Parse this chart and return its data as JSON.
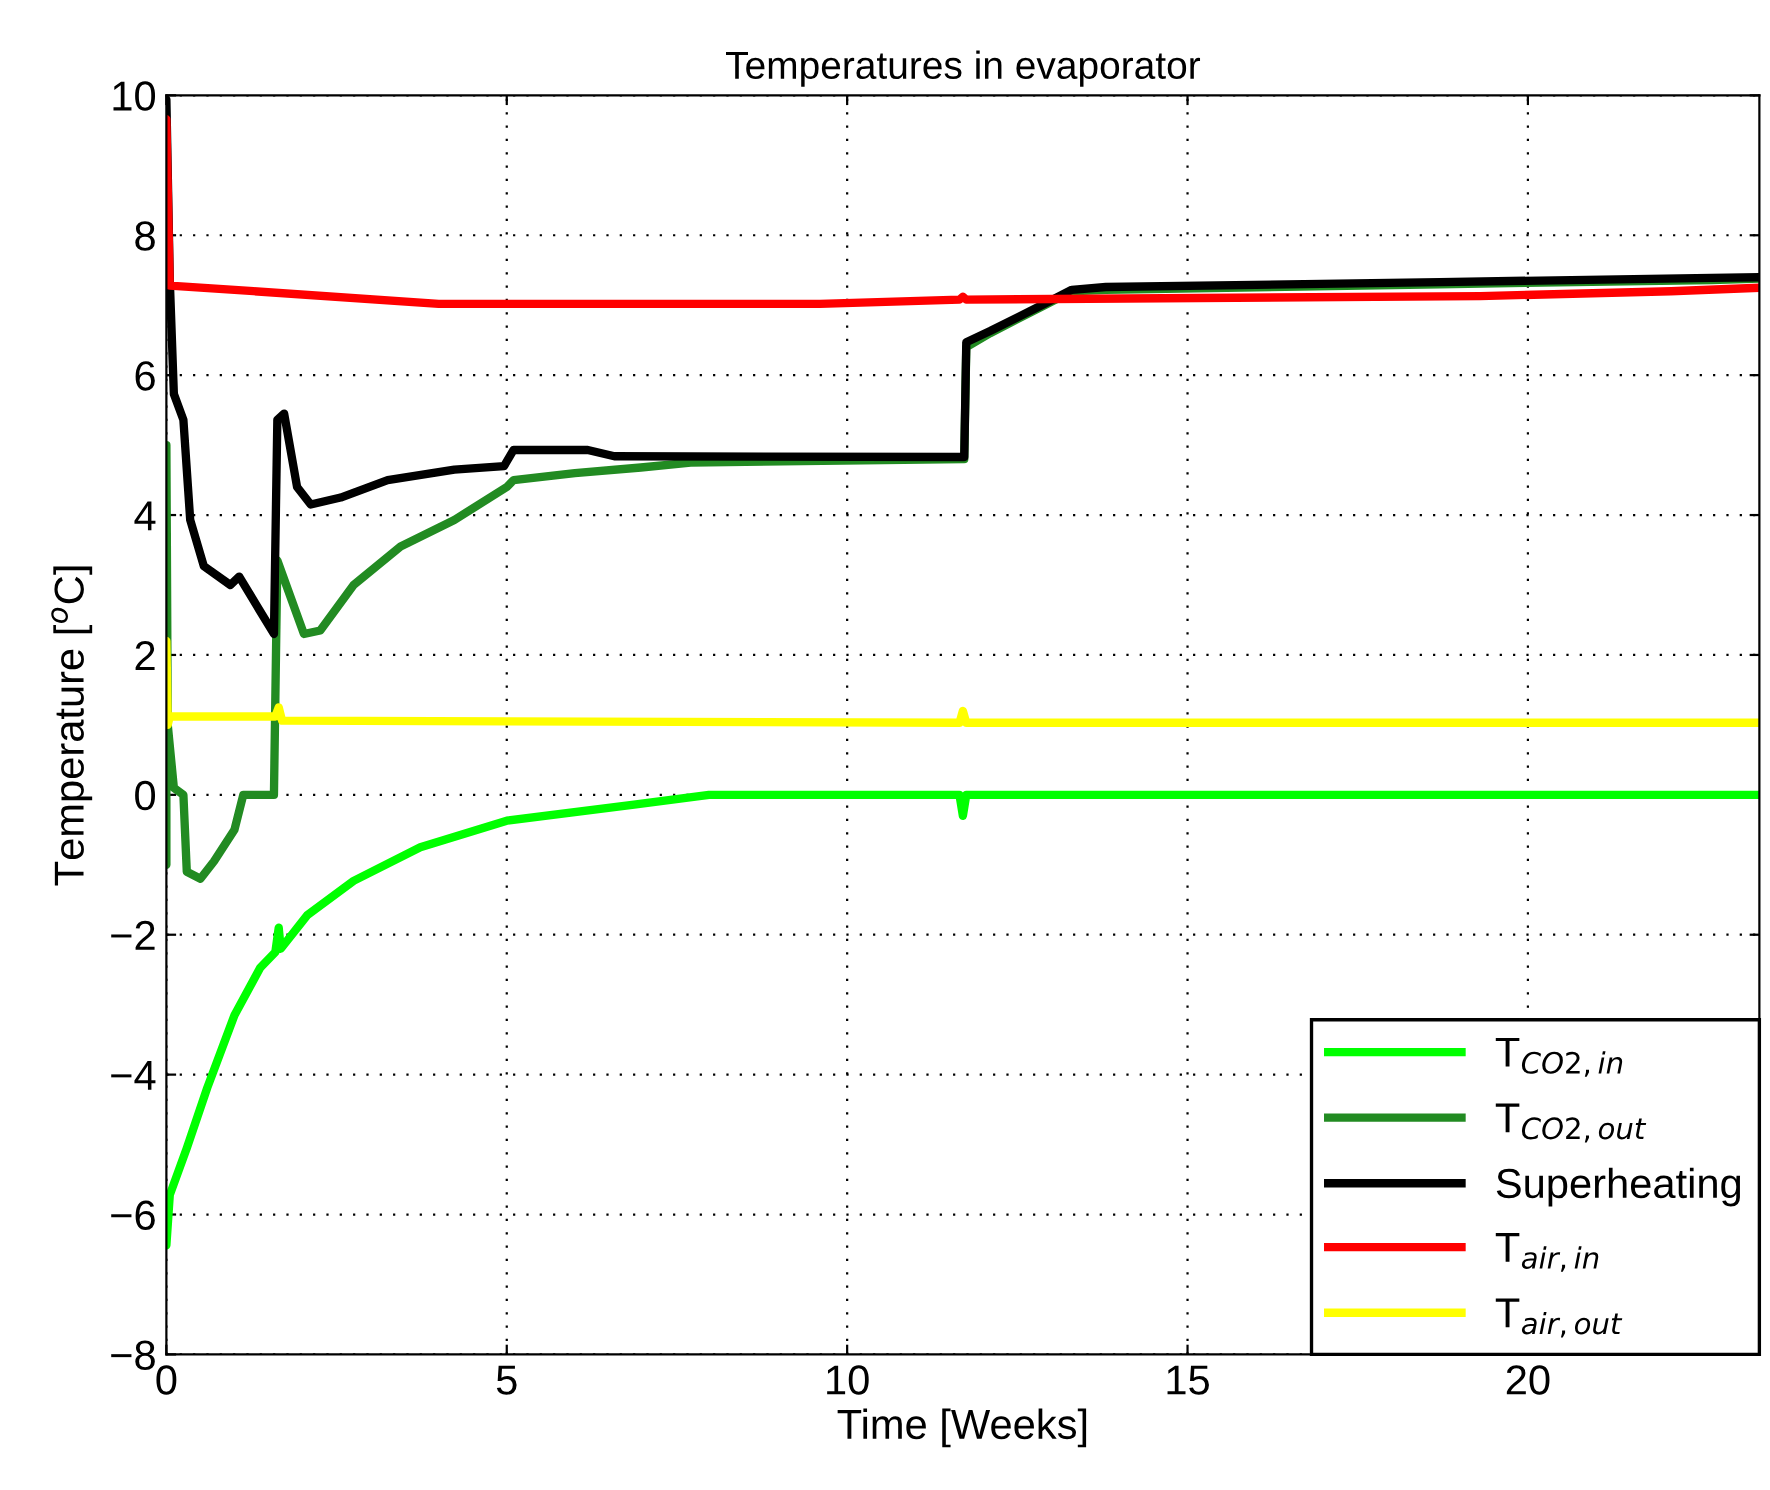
{
  "chart_data": {
    "type": "line",
    "title": "Temperatures in evaporator",
    "xlabel": "Time [Weeks]",
    "ylabel": "Temperature [$^{o}$C]",
    "xlim": [
      0,
      23.4
    ],
    "xticks": [
      0,
      5,
      10,
      15,
      20
    ],
    "ylim": [
      -8,
      10
    ],
    "yticks": [
      -8,
      -6,
      -4,
      -2,
      0,
      2,
      4,
      6,
      8,
      10
    ],
    "grid": true,
    "legend": "bottom right",
    "line_style": "solid",
    "marker": "none",
    "series": [
      {
        "name": "T$_{CO2,in}$",
        "color": "#00ff00",
        "x": [
          0,
          0.05,
          0.3,
          0.6,
          1.0,
          1.38,
          1.6,
          1.65,
          1.68,
          2.07,
          2.75,
          3.73,
          5.0,
          6.87,
          7.97,
          11.65,
          11.7,
          11.75,
          23.4
        ],
        "values": [
          -6.44,
          -5.72,
          -5.05,
          -4.19,
          -3.15,
          -2.47,
          -2.25,
          -1.9,
          -2.2,
          -1.72,
          -1.23,
          -0.75,
          -0.37,
          -0.14,
          0,
          0,
          -0.3,
          0,
          0
        ]
      },
      {
        "name": "T$_{CO2,out}$",
        "color": "#228b22",
        "x": [
          0,
          0,
          0.02,
          0.11,
          0.25,
          0.3,
          0.5,
          0.7,
          1.0,
          1.13,
          1.58,
          1.63,
          2.02,
          2.26,
          2.75,
          3.44,
          4.23,
          5.0,
          5.1,
          6.0,
          6.97,
          7.7,
          11.72,
          11.75,
          12.1,
          12.9,
          13.3,
          13.8,
          18.7,
          22.7,
          23.4
        ],
        "values": [
          -1.0,
          5.0,
          1.0,
          0.1,
          0.0,
          -1.1,
          -1.2,
          -0.95,
          -0.5,
          0.0,
          0.0,
          3.35,
          2.3,
          2.35,
          3.0,
          3.55,
          3.93,
          4.4,
          4.5,
          4.6,
          4.68,
          4.75,
          4.8,
          6.4,
          6.6,
          7.0,
          7.2,
          7.22,
          7.3,
          7.36,
          7.38
        ]
      },
      {
        "name": "Superheating",
        "color": "#000000",
        "x": [
          0,
          0.05,
          0.11,
          0.25,
          0.35,
          0.55,
          0.94,
          1.07,
          1.33,
          1.58,
          1.63,
          1.73,
          1.92,
          2.12,
          2.56,
          3.25,
          4.23,
          4.96,
          5.1,
          6.19,
          6.58,
          11.72,
          11.75,
          12.1,
          12.9,
          13.3,
          13.8,
          18.7,
          22.7,
          23.4
        ],
        "values": [
          9.94,
          7.36,
          5.73,
          5.36,
          3.93,
          3.27,
          3.0,
          3.12,
          2.7,
          2.3,
          5.36,
          5.45,
          4.4,
          4.15,
          4.25,
          4.5,
          4.65,
          4.7,
          4.93,
          4.93,
          4.84,
          4.83,
          6.47,
          6.63,
          7.02,
          7.22,
          7.26,
          7.33,
          7.39,
          7.4
        ]
      },
      {
        "name": "T$_{air,in}$",
        "color": "#ff0000",
        "x": [
          0,
          0.05,
          1.28,
          4.0,
          9.6,
          11.65,
          11.7,
          11.75,
          19.3,
          22.1,
          23.4
        ],
        "values": [
          9.66,
          7.28,
          7.2,
          7.02,
          7.02,
          7.08,
          7.12,
          7.08,
          7.13,
          7.2,
          7.25
        ]
      },
      {
        "name": "T$_{air,out}$",
        "color": "#ffff00",
        "x": [
          0,
          0.02,
          0.05,
          1.6,
          1.65,
          1.7,
          11.65,
          11.7,
          11.75,
          23.4
        ],
        "values": [
          2.2,
          1.0,
          1.12,
          1.12,
          1.25,
          1.06,
          1.03,
          1.2,
          1.03,
          1.03
        ]
      }
    ]
  }
}
